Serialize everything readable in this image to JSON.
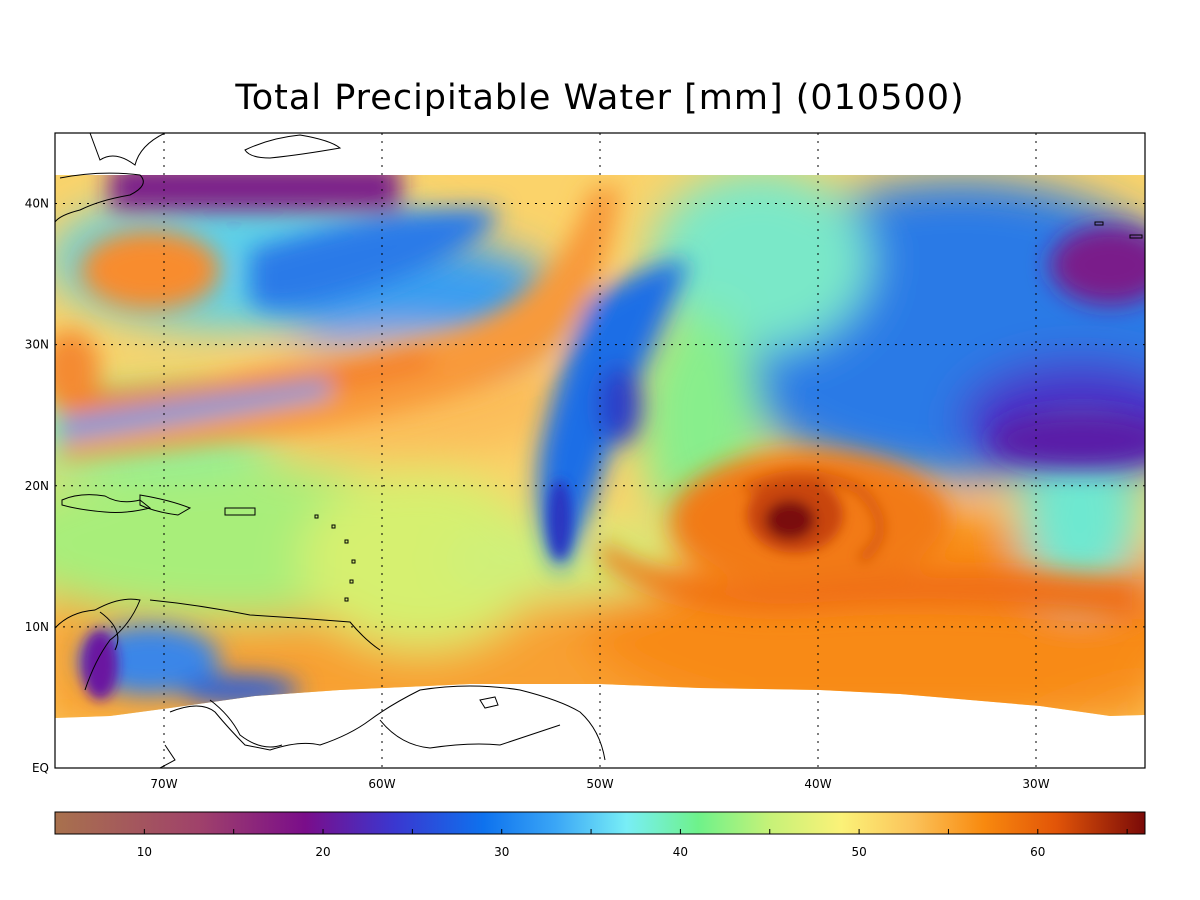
{
  "map": {
    "title": "Total Precipitable Water [mm]  (010500)",
    "lon_labels": [
      {
        "lon": -70,
        "label": "70W"
      },
      {
        "lon": -60,
        "label": "60W"
      },
      {
        "lon": -50,
        "label": "50W"
      },
      {
        "lon": -40,
        "label": "40W"
      },
      {
        "lon": -30,
        "label": "30W"
      }
    ],
    "lat_labels": [
      {
        "lat": 0,
        "label": "EQ"
      },
      {
        "lat": 10,
        "label": "10N"
      },
      {
        "lat": 20,
        "label": "20N"
      },
      {
        "lat": 30,
        "label": "30N"
      },
      {
        "lat": 40,
        "label": "40N"
      }
    ],
    "extent": {
      "lon": [
        -75,
        -25
      ],
      "lat": [
        0,
        45
      ]
    },
    "gridlines": "dotted",
    "colorbar": {
      "range": [
        5,
        66
      ],
      "ticks": [
        {
          "value": 10,
          "label": "10"
        },
        {
          "value": 20,
          "label": "20"
        },
        {
          "value": 30,
          "label": "30"
        },
        {
          "value": 40,
          "label": "40"
        },
        {
          "value": 50,
          "label": "50"
        },
        {
          "value": 60,
          "label": "60"
        }
      ],
      "stops": [
        {
          "value": 5,
          "color": "#a8714d"
        },
        {
          "value": 13,
          "color": "#a0426a"
        },
        {
          "value": 19,
          "color": "#7a0d8a"
        },
        {
          "value": 24,
          "color": "#3a37d0"
        },
        {
          "value": 29,
          "color": "#0e72ee"
        },
        {
          "value": 33,
          "color": "#3aa6f6"
        },
        {
          "value": 37,
          "color": "#78eef6"
        },
        {
          "value": 41,
          "color": "#6ef28a"
        },
        {
          "value": 45,
          "color": "#c6f278"
        },
        {
          "value": 49,
          "color": "#fbf278"
        },
        {
          "value": 53,
          "color": "#fbc35a"
        },
        {
          "value": 57,
          "color": "#f8890e"
        },
        {
          "value": 61,
          "color": "#e25508"
        },
        {
          "value": 66,
          "color": "#7a0a08"
        }
      ]
    }
  }
}
